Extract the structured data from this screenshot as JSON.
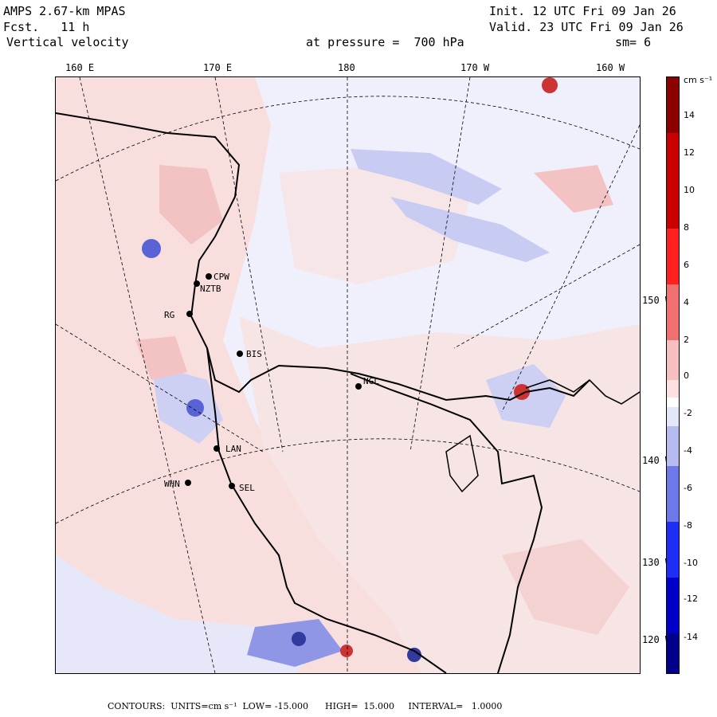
{
  "header": {
    "model": "AMPS 2.67-km MPAS",
    "forecast": "Fcst.   11 h",
    "field": "Vertical velocity",
    "init": "Init. 12 UTC Fri 09 Jan 26",
    "valid": "Valid. 23 UTC Fri 09 Jan 26",
    "pressure_level": "at pressure =  700 hPa",
    "smoothing": "sm= 6"
  },
  "longitude_labels": [
    "160 E",
    "170 E",
    "180",
    "170 W",
    "160 W"
  ],
  "latitude_labels": [
    "150 W",
    "140 W",
    "130 W",
    "120 W"
  ],
  "stations": [
    "CPW",
    "NZTB",
    "RG",
    "BIS",
    "NGL",
    "LAN",
    "WHN",
    "SEL"
  ],
  "colorbar": {
    "unit_label": "cm s⁻¹",
    "tick_labels": [
      "14",
      "12",
      "10",
      "8",
      "6",
      "4",
      "2",
      "0",
      "-2",
      "-4",
      "-6",
      "-8",
      "-10",
      "-12",
      "-14"
    ],
    "colors": {
      "pos_max": "#8b0000",
      "pos_mid": "#ff0000",
      "pos_min": "#fde0e0",
      "neutral": "#ffffff",
      "neg_min": "#e4e6f9",
      "neg_mid": "#0000ff",
      "neg_max": "#00008b"
    }
  },
  "footer": {
    "text": "CONTOURS:  UNITS=cm s⁻¹  LOW= -15.000      HIGH=  15.000     INTERVAL=   1.0000"
  },
  "map_colors": {
    "ocean_ice_base": "#eff0fb",
    "positive_light": "#f9d9d9",
    "negative_light": "#c9ccf2",
    "coastline": "#000000",
    "gridline": "#000000"
  }
}
